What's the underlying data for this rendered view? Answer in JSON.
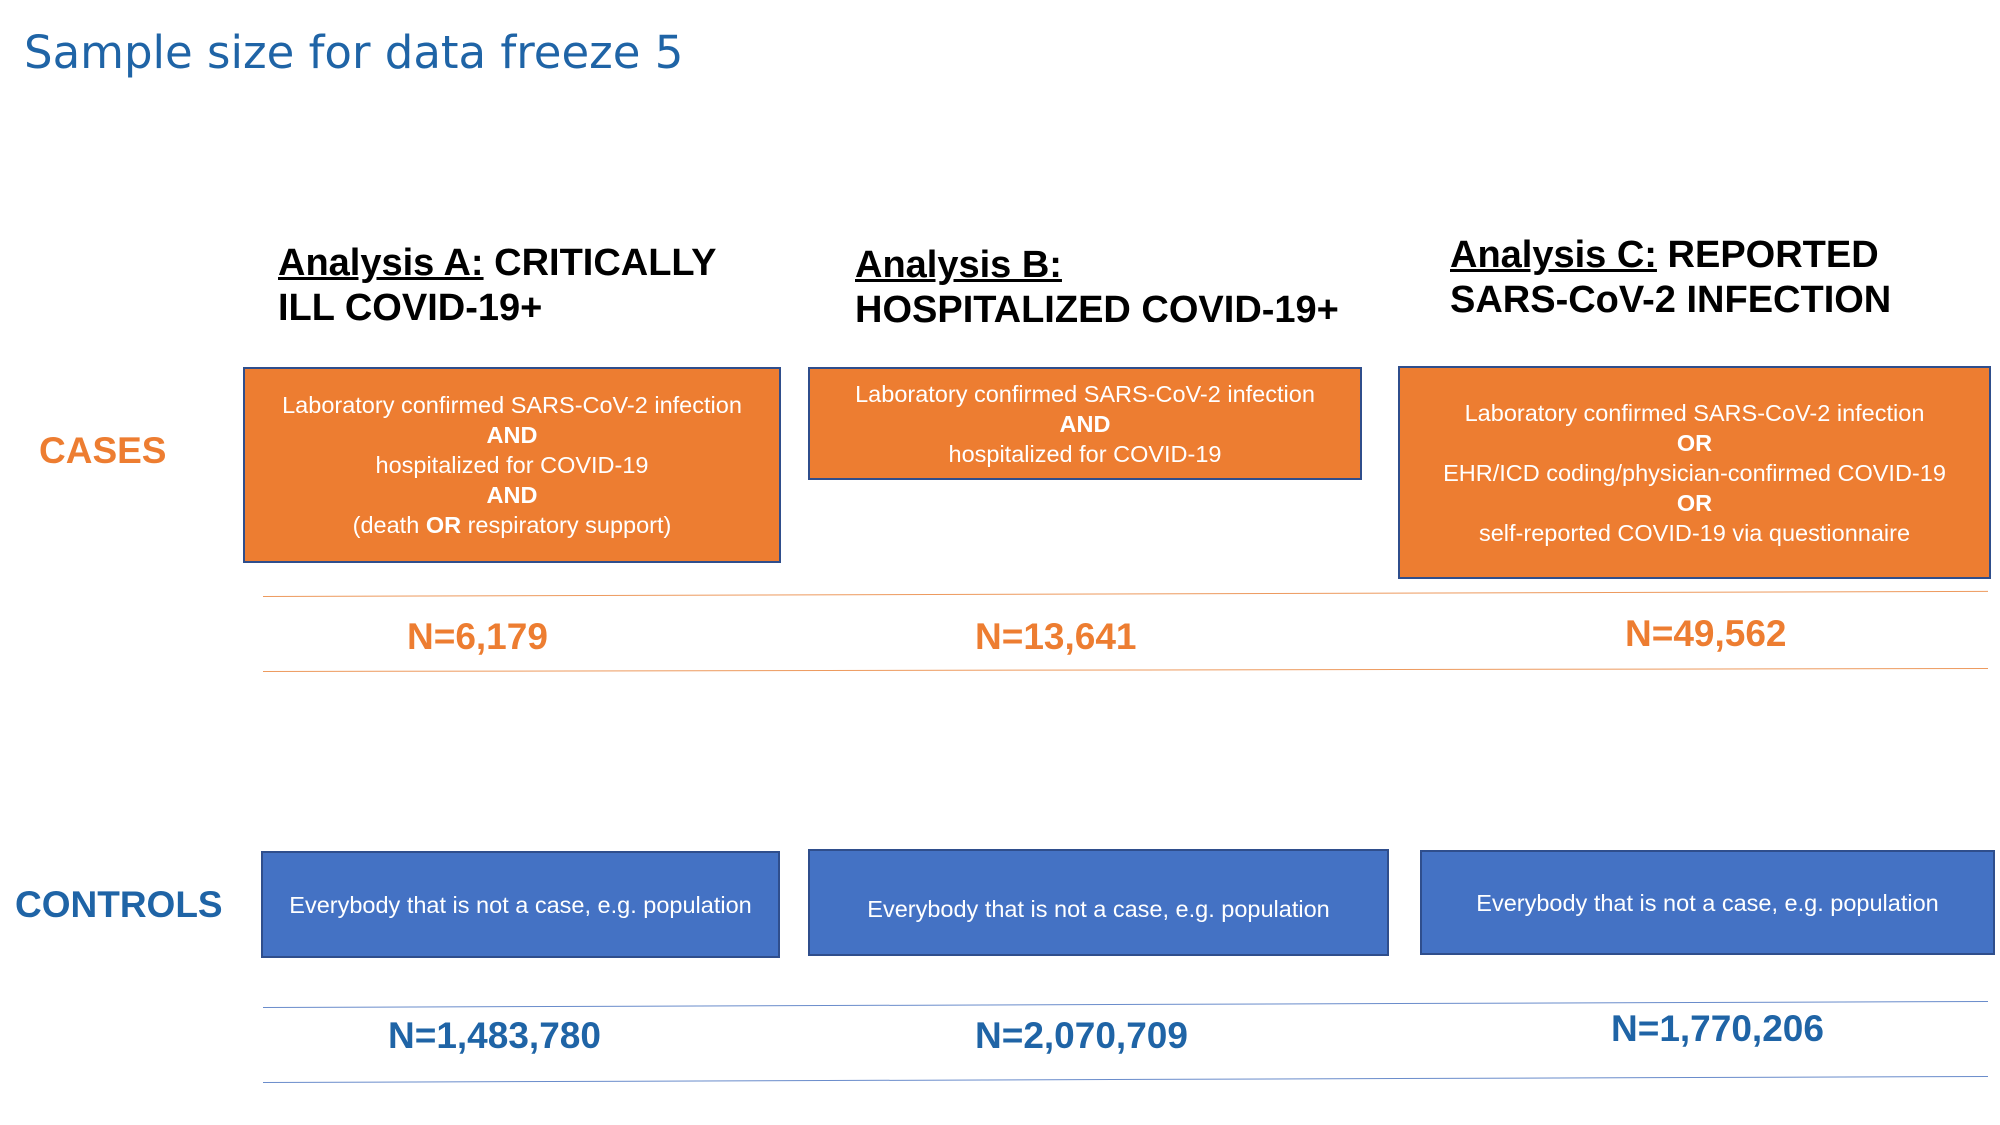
{
  "title": "Sample size for data freeze 5",
  "row_labels": {
    "cases": "CASES",
    "controls": "CONTROLS"
  },
  "analyses": [
    {
      "heading_underlined": "Analysis A:",
      "heading_rest_line1": " CRITICALLY",
      "heading_line2": "ILL COVID-19+",
      "case_definition": {
        "line1": "Laboratory confirmed SARS-CoV-2 infection",
        "op1": "AND",
        "line2": "hospitalized for COVID-19",
        "op2": "AND",
        "line3_pre": "(death ",
        "line3_op": "OR",
        "line3_post": " respiratory support)"
      },
      "cases_n": "N=6,179",
      "controls_definition": "Everybody that is not a case, e.g. population",
      "controls_n": "N=1,483,780"
    },
    {
      "heading_underlined": "Analysis B:",
      "heading_rest_line1": "",
      "heading_line2": "HOSPITALIZED COVID-19+",
      "case_definition": {
        "line1": "Laboratory confirmed SARS-CoV-2 infection",
        "op1": "AND",
        "line2": "hospitalized for COVID-19"
      },
      "cases_n": "N=13,641",
      "controls_definition": "Everybody that is not a case, e.g. population",
      "controls_n": "N=2,070,709"
    },
    {
      "heading_underlined": "Analysis C:",
      "heading_rest_line1": " REPORTED",
      "heading_line2": "SARS-CoV-2 INFECTION",
      "case_definition": {
        "line1": "Laboratory confirmed SARS-CoV-2 infection",
        "op1": "OR",
        "line2": "EHR/ICD coding/physician-confirmed COVID-19",
        "op2": "OR",
        "line3": "self-reported COVID-19 via questionnaire"
      },
      "cases_n": "N=49,562",
      "controls_definition": "Everybody that is not a case, e.g. population",
      "controls_n": "N=1,770,206"
    }
  ],
  "colors": {
    "title": "#1F64A6",
    "cases_accent": "#ED7D31",
    "controls_accent": "#1F64A6",
    "controls_box": "#4472C4"
  }
}
